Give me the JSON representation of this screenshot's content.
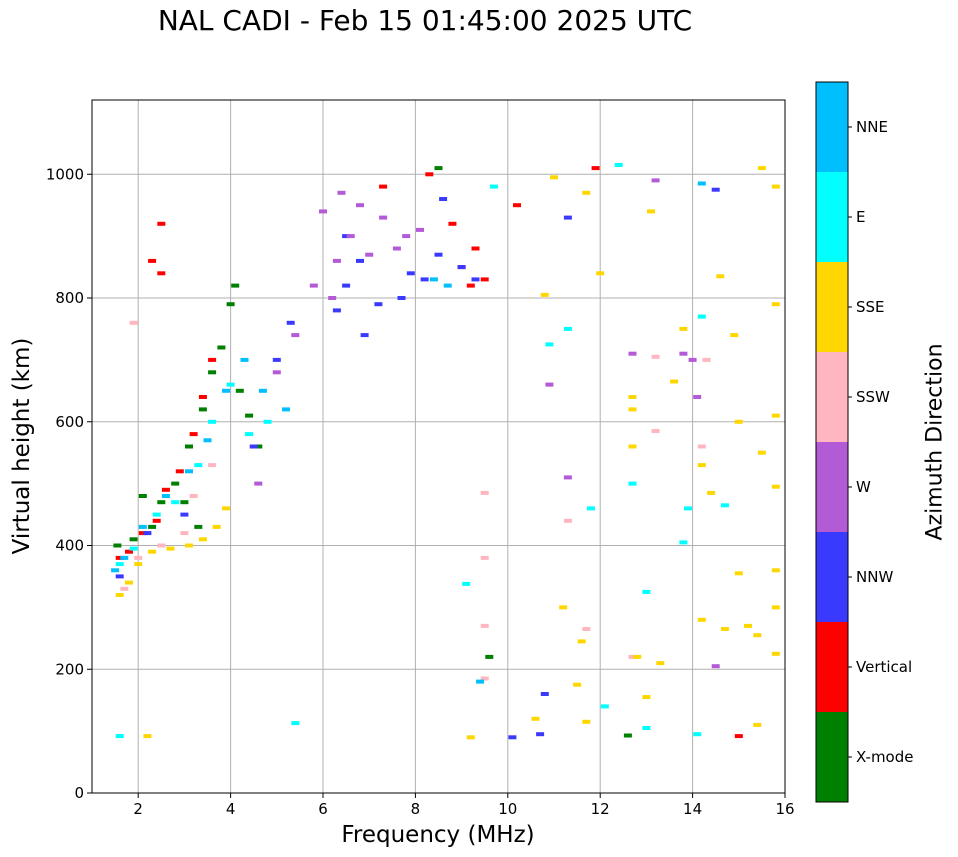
{
  "chart_data": {
    "type": "scatter",
    "title": "NAL CADI - Feb 15 01:45:00 2025 UTC",
    "xlabel": "Frequency (MHz)",
    "ylabel": "Virtual height (km)",
    "xlim": [
      1,
      16
    ],
    "ylim": [
      0,
      1120
    ],
    "xticks": [
      2,
      4,
      6,
      8,
      10,
      12,
      14,
      16
    ],
    "yticks": [
      0,
      200,
      400,
      600,
      800,
      1000
    ],
    "grid": true,
    "colorbar": {
      "label": "Azimuth Direction",
      "categories": [
        {
          "name": "X-mode",
          "color": "#008000"
        },
        {
          "name": "Vertical",
          "color": "#ff0000"
        },
        {
          "name": "NNW",
          "color": "#3a3aff"
        },
        {
          "name": "W",
          "color": "#b35ad6"
        },
        {
          "name": "SSW",
          "color": "#ffb6c1"
        },
        {
          "name": "SSE",
          "color": "#ffd700"
        },
        {
          "name": "E",
          "color": "#00ffff"
        },
        {
          "name": "NNE",
          "color": "#00bfff"
        }
      ]
    },
    "series": [
      {
        "name": "X-mode",
        "points": [
          [
            1.55,
            400
          ],
          [
            1.9,
            410
          ],
          [
            2.3,
            430
          ],
          [
            2.5,
            470
          ],
          [
            2.8,
            500
          ],
          [
            3.1,
            560
          ],
          [
            3.4,
            620
          ],
          [
            3.6,
            680
          ],
          [
            3.8,
            720
          ],
          [
            4.0,
            790
          ],
          [
            4.1,
            820
          ],
          [
            4.2,
            650
          ],
          [
            4.4,
            610
          ],
          [
            4.6,
            560
          ],
          [
            3.0,
            470
          ],
          [
            3.3,
            430
          ],
          [
            2.1,
            480
          ],
          [
            8.5,
            1010
          ],
          [
            9.6,
            220
          ],
          [
            12.6,
            93
          ]
        ]
      },
      {
        "name": "Vertical",
        "points": [
          [
            1.6,
            380
          ],
          [
            1.8,
            390
          ],
          [
            2.1,
            420
          ],
          [
            2.4,
            440
          ],
          [
            2.6,
            490
          ],
          [
            2.9,
            520
          ],
          [
            3.2,
            580
          ],
          [
            3.4,
            640
          ],
          [
            3.6,
            700
          ],
          [
            2.5,
            920
          ],
          [
            2.3,
            860
          ],
          [
            2.5,
            840
          ],
          [
            7.3,
            980
          ],
          [
            8.3,
            1000
          ],
          [
            8.8,
            920
          ],
          [
            9.0,
            850
          ],
          [
            9.2,
            820
          ],
          [
            9.5,
            830
          ],
          [
            9.3,
            880
          ],
          [
            10.2,
            950
          ],
          [
            11.9,
            1010
          ],
          [
            15.0,
            92
          ]
        ]
      },
      {
        "name": "NNW",
        "points": [
          [
            1.6,
            350
          ],
          [
            2.2,
            420
          ],
          [
            3.0,
            450
          ],
          [
            4.5,
            560
          ],
          [
            5.0,
            700
          ],
          [
            5.3,
            760
          ],
          [
            6.3,
            780
          ],
          [
            6.5,
            820
          ],
          [
            6.8,
            860
          ],
          [
            7.2,
            790
          ],
          [
            7.7,
            800
          ],
          [
            7.9,
            840
          ],
          [
            8.2,
            830
          ],
          [
            8.5,
            870
          ],
          [
            8.6,
            960
          ],
          [
            9.0,
            850
          ],
          [
            9.3,
            830
          ],
          [
            6.5,
            900
          ],
          [
            6.9,
            740
          ],
          [
            11.3,
            930
          ],
          [
            10.8,
            160
          ],
          [
            10.7,
            95
          ],
          [
            10.1,
            90
          ],
          [
            14.5,
            975
          ]
        ]
      },
      {
        "name": "W",
        "points": [
          [
            4.6,
            500
          ],
          [
            5.0,
            680
          ],
          [
            5.4,
            740
          ],
          [
            5.8,
            820
          ],
          [
            6.0,
            940
          ],
          [
            6.3,
            860
          ],
          [
            6.6,
            900
          ],
          [
            6.8,
            950
          ],
          [
            7.0,
            870
          ],
          [
            7.3,
            930
          ],
          [
            7.6,
            880
          ],
          [
            7.8,
            900
          ],
          [
            8.1,
            910
          ],
          [
            6.4,
            970
          ],
          [
            6.2,
            800
          ],
          [
            12.7,
            710
          ],
          [
            13.2,
            990
          ],
          [
            13.8,
            710
          ],
          [
            14.1,
            640
          ],
          [
            14.5,
            205
          ],
          [
            11.3,
            510
          ],
          [
            10.9,
            660
          ],
          [
            14.0,
            700
          ]
        ]
      },
      {
        "name": "SSW",
        "points": [
          [
            1.7,
            330
          ],
          [
            2.0,
            380
          ],
          [
            2.5,
            400
          ],
          [
            3.0,
            420
          ],
          [
            3.2,
            480
          ],
          [
            3.6,
            530
          ],
          [
            1.9,
            760
          ],
          [
            9.5,
            485
          ],
          [
            9.5,
            380
          ],
          [
            9.5,
            270
          ],
          [
            9.5,
            185
          ],
          [
            11.3,
            440
          ],
          [
            11.7,
            265
          ],
          [
            12.7,
            220
          ],
          [
            14.2,
            560
          ],
          [
            14.3,
            700
          ],
          [
            13.2,
            705
          ],
          [
            13.2,
            585
          ]
        ]
      },
      {
        "name": "SSE",
        "points": [
          [
            1.6,
            320
          ],
          [
            1.8,
            340
          ],
          [
            2.0,
            370
          ],
          [
            2.3,
            390
          ],
          [
            2.7,
            395
          ],
          [
            3.1,
            400
          ],
          [
            3.4,
            410
          ],
          [
            3.7,
            430
          ],
          [
            3.9,
            460
          ],
          [
            2.2,
            92
          ],
          [
            9.2,
            90
          ],
          [
            10.6,
            120
          ],
          [
            11.2,
            300
          ],
          [
            11.5,
            175
          ],
          [
            11.6,
            245
          ],
          [
            11.7,
            115
          ],
          [
            12.7,
            560
          ],
          [
            12.7,
            620
          ],
          [
            12.7,
            640
          ],
          [
            12.8,
            220
          ],
          [
            13.0,
            155
          ],
          [
            13.1,
            940
          ],
          [
            13.3,
            210
          ],
          [
            13.6,
            665
          ],
          [
            13.8,
            750
          ],
          [
            14.2,
            530
          ],
          [
            14.2,
            280
          ],
          [
            14.4,
            485
          ],
          [
            14.6,
            835
          ],
          [
            14.7,
            265
          ],
          [
            14.9,
            740
          ],
          [
            15.0,
            600
          ],
          [
            15.0,
            355
          ],
          [
            15.2,
            270
          ],
          [
            15.4,
            255
          ],
          [
            15.4,
            110
          ],
          [
            15.5,
            550
          ],
          [
            15.5,
            1010
          ],
          [
            15.8,
            610
          ],
          [
            15.8,
            495
          ],
          [
            15.8,
            360
          ],
          [
            15.8,
            300
          ],
          [
            15.8,
            225
          ],
          [
            15.8,
            980
          ],
          [
            15.8,
            790
          ],
          [
            11.0,
            995
          ],
          [
            11.7,
            970
          ],
          [
            12.0,
            840
          ],
          [
            10.8,
            805
          ]
        ]
      },
      {
        "name": "E",
        "points": [
          [
            1.6,
            370
          ],
          [
            1.9,
            395
          ],
          [
            2.4,
            450
          ],
          [
            2.8,
            470
          ],
          [
            3.3,
            530
          ],
          [
            3.6,
            600
          ],
          [
            4.0,
            660
          ],
          [
            4.4,
            580
          ],
          [
            4.8,
            600
          ],
          [
            5.4,
            113
          ],
          [
            1.6,
            92
          ],
          [
            9.1,
            338
          ],
          [
            9.7,
            980
          ],
          [
            10.9,
            725
          ],
          [
            11.3,
            750
          ],
          [
            11.8,
            460
          ],
          [
            12.1,
            140
          ],
          [
            12.4,
            1015
          ],
          [
            12.7,
            500
          ],
          [
            13.0,
            105
          ],
          [
            13.0,
            325
          ],
          [
            13.8,
            405
          ],
          [
            13.9,
            460
          ],
          [
            14.1,
            95
          ],
          [
            14.2,
            770
          ],
          [
            14.7,
            465
          ]
        ]
      },
      {
        "name": "NNE",
        "points": [
          [
            1.5,
            360
          ],
          [
            1.7,
            380
          ],
          [
            2.1,
            430
          ],
          [
            2.6,
            480
          ],
          [
            3.1,
            520
          ],
          [
            3.5,
            570
          ],
          [
            3.9,
            650
          ],
          [
            4.3,
            700
          ],
          [
            4.7,
            650
          ],
          [
            5.2,
            620
          ],
          [
            8.4,
            830
          ],
          [
            8.7,
            820
          ],
          [
            9.4,
            180
          ],
          [
            14.2,
            985
          ]
        ]
      }
    ]
  }
}
